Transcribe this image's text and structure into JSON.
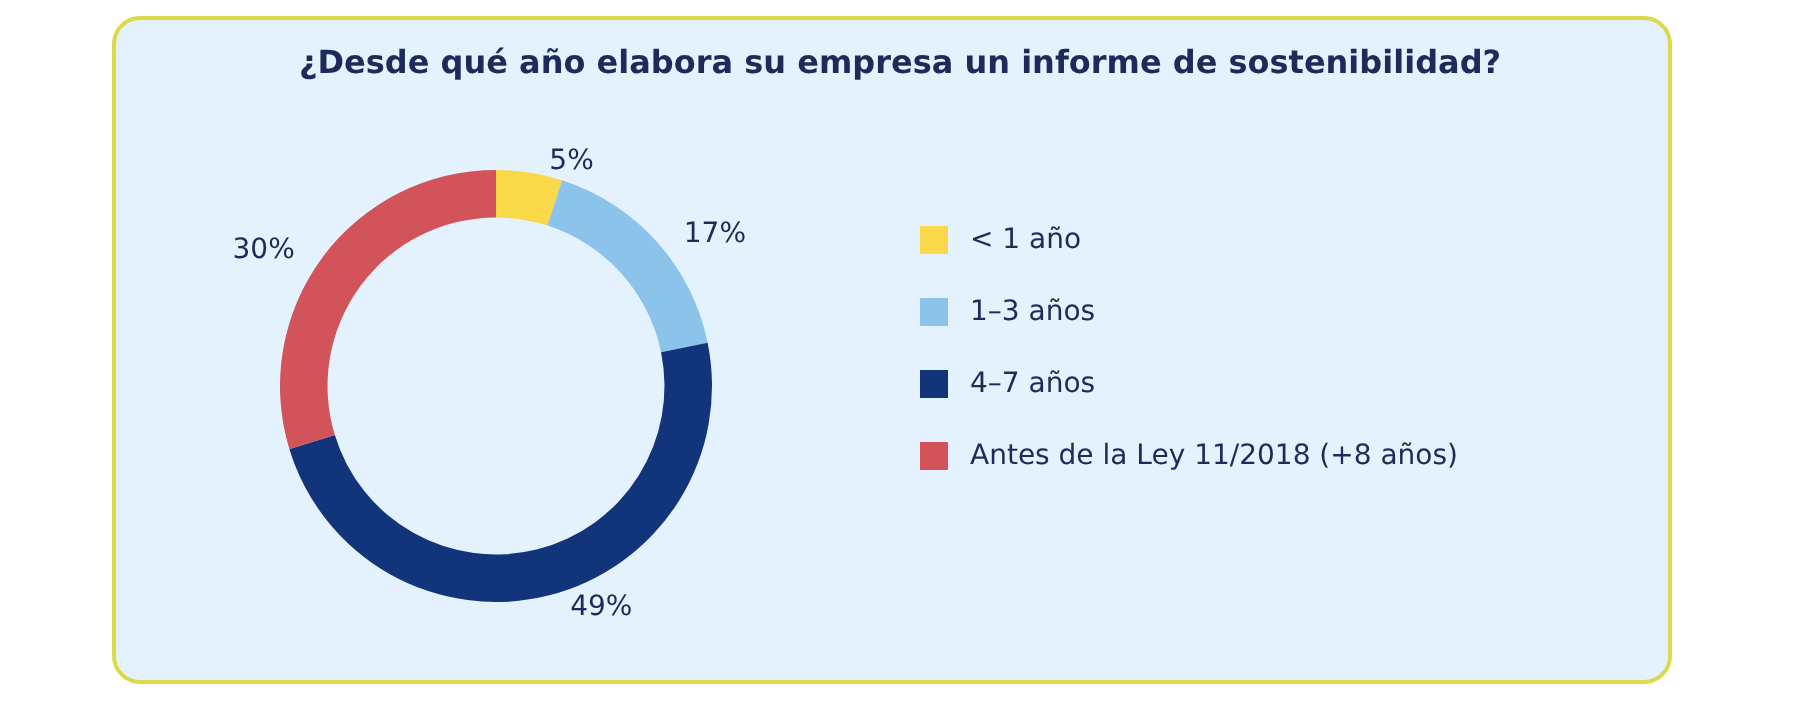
{
  "chart_data": {
    "type": "donut",
    "title": "¿Desde qué año elabora su empresa un informe de sostenibilidad?",
    "categories": [
      "< 1 año",
      "1–3 años",
      "4–7 años",
      "Antes de la Ley 11/2018 (+8 años)"
    ],
    "values": [
      5,
      17,
      49,
      30
    ],
    "value_labels": [
      "5%",
      "17%",
      "49%",
      "30%"
    ],
    "colors": [
      "#f9d949",
      "#8cc3ea",
      "#11347a",
      "#d2535a"
    ],
    "legend": "right"
  }
}
